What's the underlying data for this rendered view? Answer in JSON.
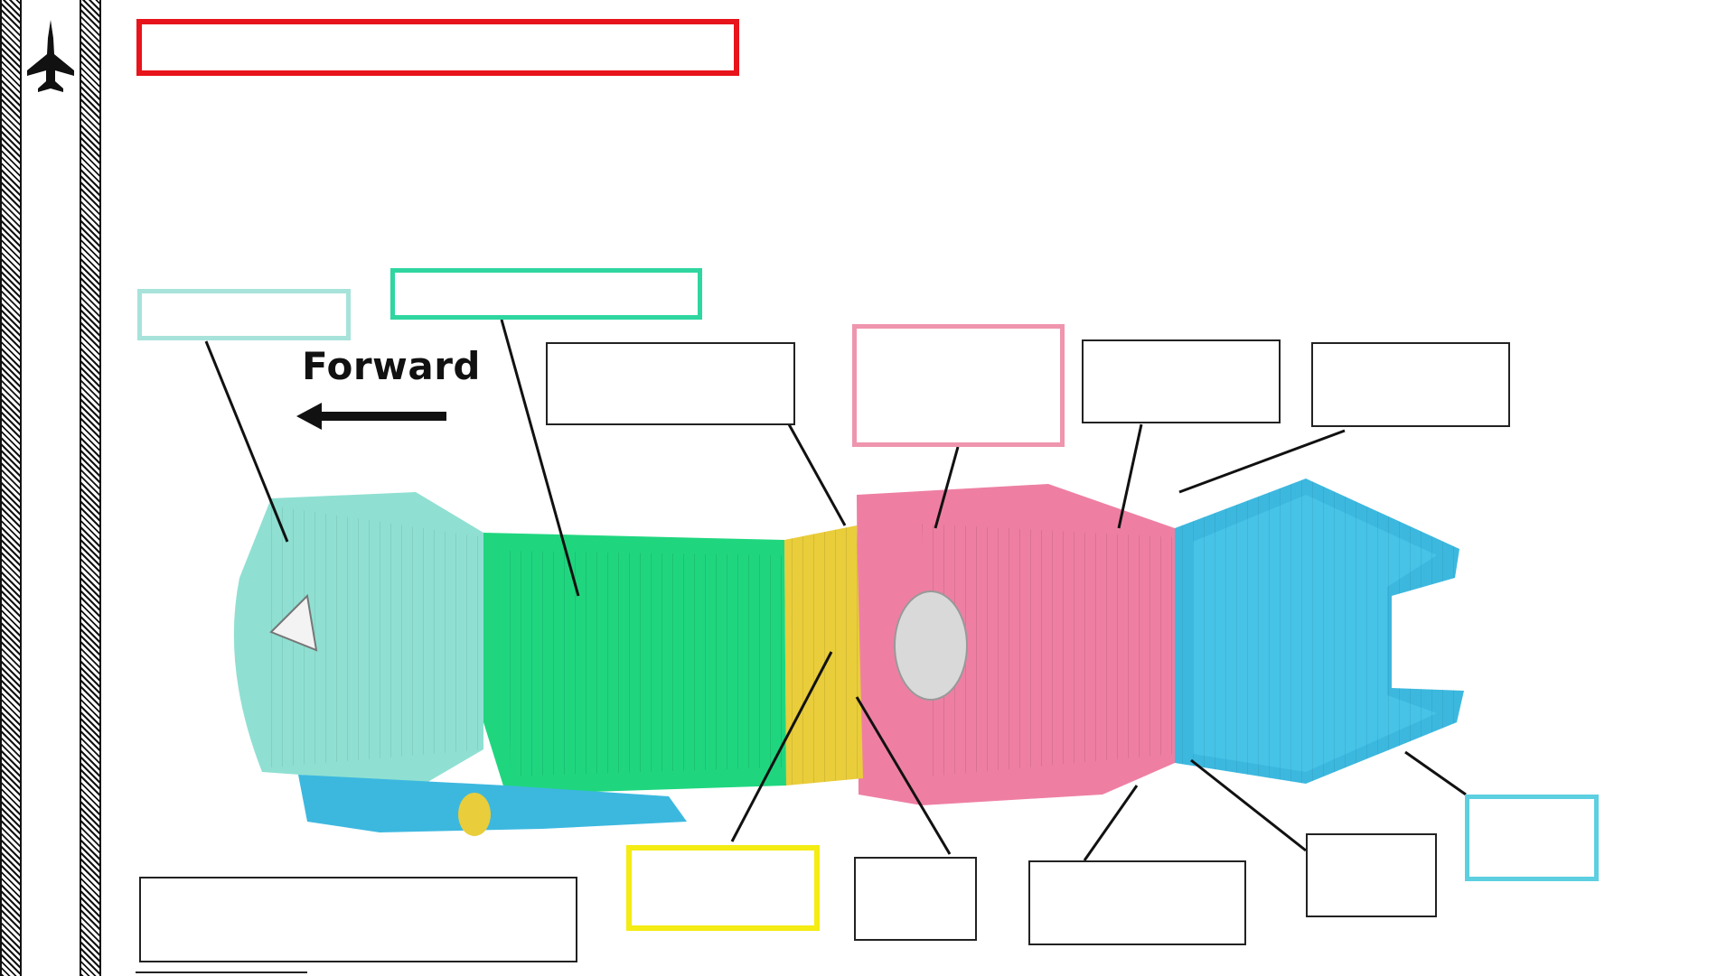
{
  "diagram": {
    "direction_label": "Forward",
    "label_boxes": {
      "title": "",
      "fan": "",
      "compressor": "",
      "upper_label_1": "",
      "combustion": "",
      "upper_label_2": "",
      "upper_label_3": "",
      "bottom_left_caption": "",
      "turbine": "",
      "lower_label_1": "",
      "lower_label_2": "",
      "lower_label_3": "",
      "exhaust_nozzle": ""
    },
    "colors": {
      "title_border": "#e8141b",
      "fan_border": "#a7e3da",
      "fan_section": "#8fe0d2",
      "compressor_border": "#2fd6a0",
      "compressor_section": "#1fd67f",
      "combustion_border": "#ef95ae",
      "combustion_section": "#ee7fa3",
      "turbine_border": "#f4ec12",
      "turbine_section": "#e9cd3a",
      "nozzle_border": "#5ccfe0",
      "nozzle_section": "#3cb8df",
      "plain_border": "#222222",
      "leader_line": "#111111"
    },
    "icons": [
      "fighter-jet-icon",
      "arrow-left-icon"
    ]
  }
}
